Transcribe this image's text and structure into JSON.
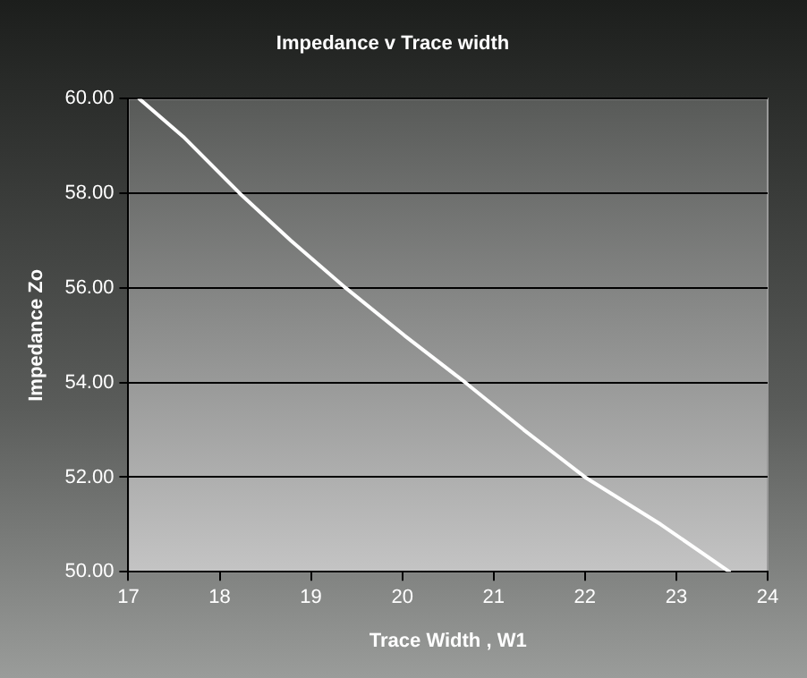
{
  "chart_data": {
    "type": "line",
    "title": "Impedance v Trace width",
    "xlabel": "Trace Width , W1",
    "ylabel": "Impedance Zo",
    "x": [
      17.12,
      17.6,
      18.22,
      18.78,
      19.38,
      20.02,
      20.69,
      21.33,
      22.0,
      22.83,
      23.58
    ],
    "series": [
      {
        "color": "#ffffff",
        "values": [
          60,
          59.2,
          58,
          57,
          56,
          55,
          54,
          53,
          52,
          51,
          50
        ]
      }
    ],
    "xlim": [
      17,
      24
    ],
    "xticks": [
      17,
      18,
      19,
      20,
      21,
      22,
      23,
      24
    ],
    "ylim": [
      50,
      60
    ],
    "yticks": [
      {
        "value": 50,
        "label": "50.00"
      },
      {
        "value": 52,
        "label": "52.00"
      },
      {
        "value": 54,
        "label": "54.00"
      },
      {
        "value": 56,
        "label": "56.00"
      },
      {
        "value": 58,
        "label": "58.00"
      },
      {
        "value": 60,
        "label": "60.00"
      }
    ],
    "grid": "y",
    "legend": false,
    "marker": "none",
    "line_style": "solid"
  }
}
